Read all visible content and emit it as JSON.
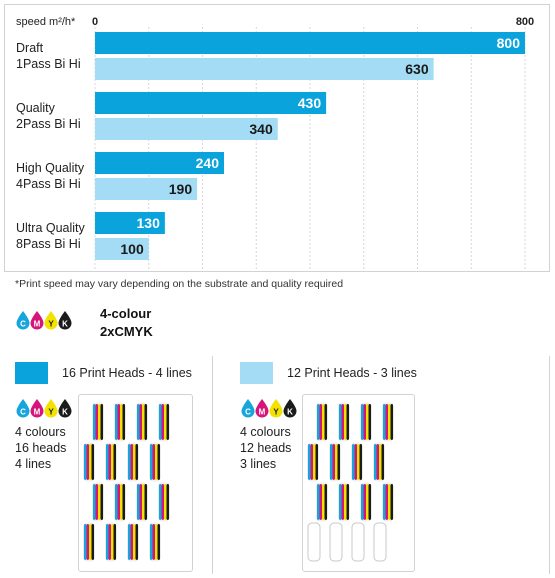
{
  "chart_data": {
    "type": "bar",
    "orientation": "horizontal",
    "ylabel": "speed m²/h*",
    "xlim": [
      0,
      800
    ],
    "axis_ticks": [
      "0",
      "800"
    ],
    "grid": true,
    "categories": [
      {
        "line1": "Draft",
        "line2": "1Pass Bi Hi"
      },
      {
        "line1": "Quality",
        "line2": "2Pass Bi Hi"
      },
      {
        "line1": "High Quality",
        "line2": "4Pass Bi Hi"
      },
      {
        "line1": "Ultra Quality",
        "line2": "8Pass Bi Hi"
      }
    ],
    "series": [
      {
        "values": [
          800,
          430,
          240,
          130
        ],
        "color": "#0aa3dc"
      },
      {
        "values": [
          630,
          340,
          190,
          100
        ],
        "color": "#a3dcf4"
      }
    ]
  },
  "footnote": "*Print speed may vary depending on the substrate and quality required",
  "cmyk": {
    "letters": [
      "C",
      "M",
      "Y",
      "K"
    ],
    "colors": [
      "#16a6dc",
      "#d6157a",
      "#f3e100",
      "#1b1b1b"
    ],
    "title_line1": "4-colour",
    "title_line2": "2xCMYK"
  },
  "configs": [
    {
      "legend": "16 Print Heads - 4 lines",
      "color": "#0aa3dc",
      "spec": [
        "4 colours",
        "16 heads",
        "4 lines"
      ],
      "rows": 4,
      "empty_rows": 0
    },
    {
      "legend": "12 Print Heads - 3 lines",
      "color": "#a3dcf4",
      "spec": [
        "4 colours",
        "12 heads",
        "3 lines"
      ],
      "rows": 3,
      "empty_rows": 1
    }
  ]
}
